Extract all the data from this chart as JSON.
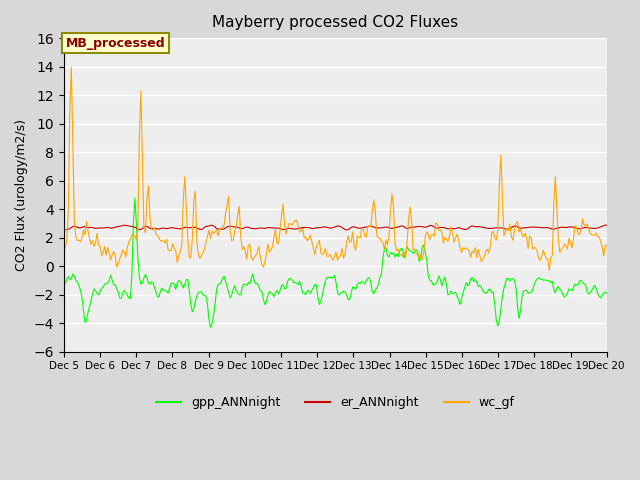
{
  "title": "Mayberry processed CO2 Fluxes",
  "ylabel": "CO2 Flux (urology/m2/s)",
  "xlabel": "",
  "xlim_days": [
    5,
    20
  ],
  "ylim": [
    -6,
    16
  ],
  "yticks": [
    -6,
    -4,
    -2,
    0,
    2,
    4,
    6,
    8,
    10,
    12,
    14,
    16
  ],
  "xtick_labels": [
    "Dec 5",
    "Dec 6",
    "Dec 7",
    "Dec 8",
    "Dec 9",
    "Dec 10",
    "Dec 11",
    "Dec 12",
    "Dec 13",
    "Dec 14",
    "Dec 15",
    "Dec 16",
    "Dec 17",
    "Dec 18",
    "Dec 19",
    "Dec 20"
  ],
  "legend_labels": [
    "gpp_ANNnight",
    "er_ANNnight",
    "wc_gf"
  ],
  "legend_colors": [
    "#00ff00",
    "#cc0000",
    "#ffa500"
  ],
  "annotation_text": "MB_processed",
  "annotation_color": "#8b0000",
  "annotation_bg": "#ffffcc",
  "bg_color": "#e8e8e8",
  "plot_bg": "#f0f0f0",
  "grid_color": "#ffffff",
  "n_points": 360
}
